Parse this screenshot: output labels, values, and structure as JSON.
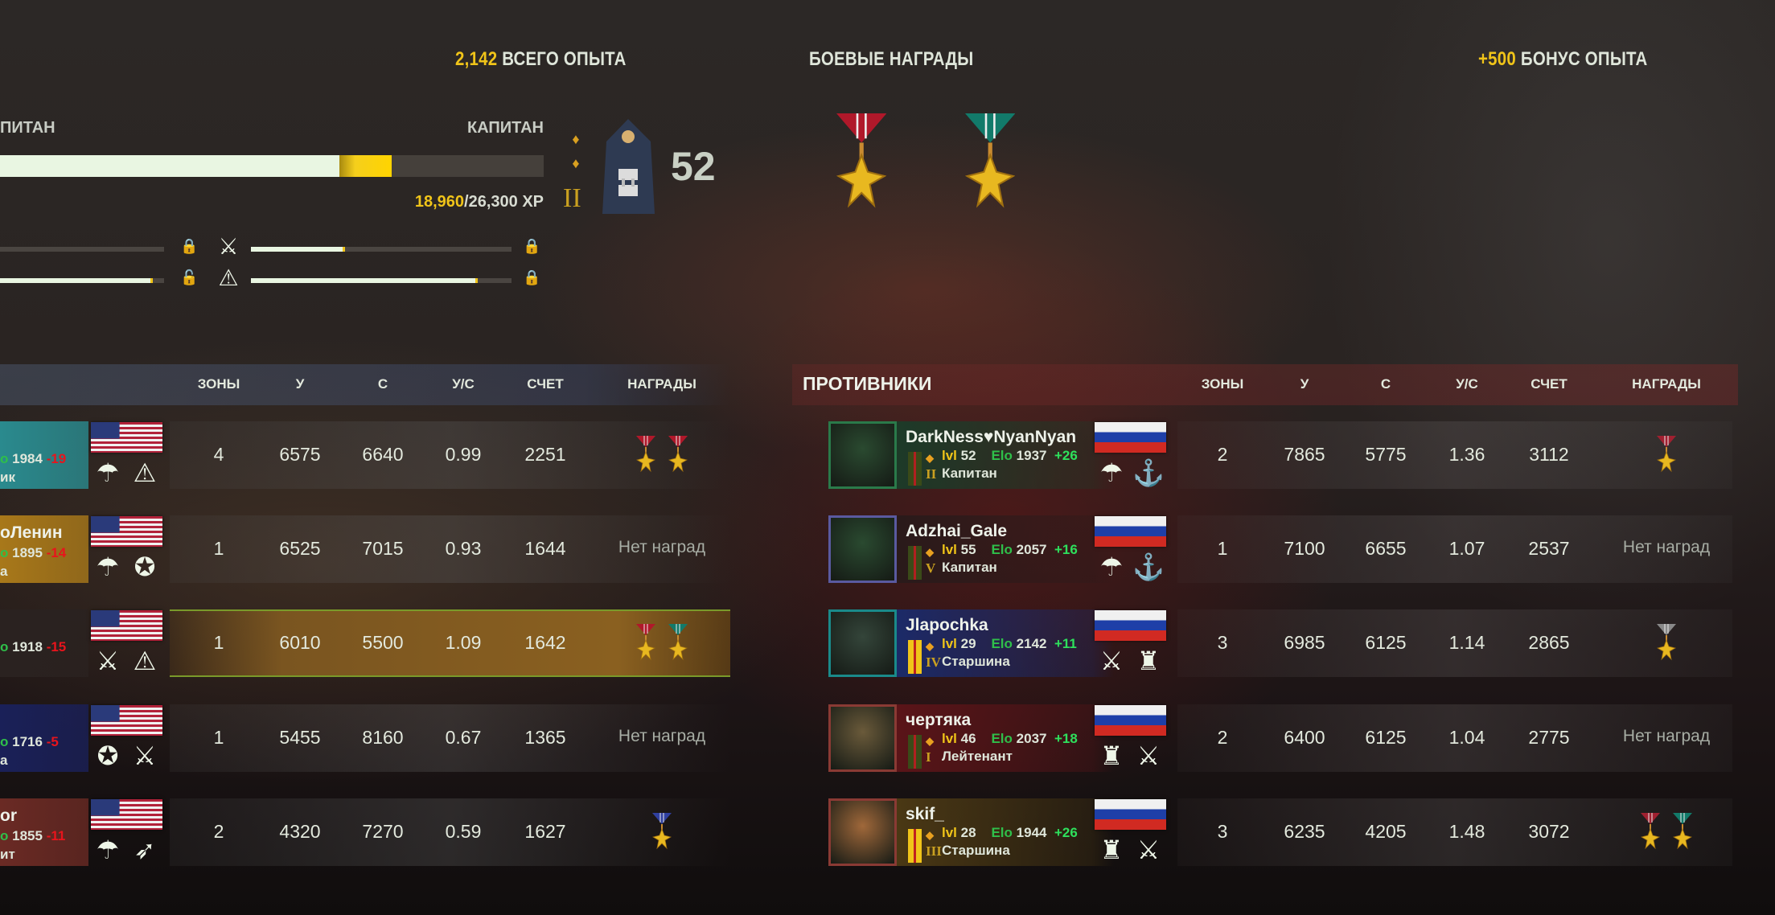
{
  "summary": {
    "total_xp_value": "2,142",
    "total_xp_label": "ВСЕГО ОПЫТА",
    "awards_title": "БОЕВЫЕ НАГРАДЫ",
    "bonus_value": "+500",
    "bonus_label": "БОНУС ОПЫТА"
  },
  "progress": {
    "current_rank": "ПИТАН",
    "next_rank": "КАПИТАН",
    "xp_current": "18,960",
    "xp_total": "/26,300 XP",
    "fill_fraction": 0.72,
    "gain_start_fraction": 0.624,
    "level": "52",
    "rank_numeral": "II"
  },
  "class_progress": [
    {
      "left_fraction": 0.0,
      "left_lock": "locked",
      "icon": "cavalry-icon",
      "right_fraction": 0.36,
      "right_lock": "locked"
    },
    {
      "left_fraction": 0.93,
      "left_lock": "unlocked",
      "icon": "engineer-icon",
      "right_fraction": 0.87,
      "right_lock": "locked"
    }
  ],
  "battle_awards": [
    {
      "ribbon": "#b0182a"
    },
    {
      "ribbon": "#127a6a"
    }
  ],
  "columns": [
    "ЗОНЫ",
    "У",
    "С",
    "У/С",
    "СЧЕТ",
    "НАГРАДЫ"
  ],
  "enemies_title": "ПРОТИВНИКИ",
  "no_awards": "Нет наград",
  "colors": {
    "accent": "#f0c419",
    "elo_green": "#2fbf4a",
    "gain": "#2ee05c",
    "loss": "#e8141c"
  },
  "allies": [
    {
      "name": "",
      "elo_prefix": "o",
      "elo": "1984",
      "delta": "-19",
      "rank": "ик",
      "bg": "#2a8a8e",
      "badges": [
        "parachute-icon",
        "engineer-icon"
      ],
      "zones": "4",
      "k": "6575",
      "d": "6640",
      "kd": "0.99",
      "score": "2251",
      "awards": [
        "#b0182a",
        "#b0182a"
      ]
    },
    {
      "name": "оЛенин",
      "elo_prefix": "o",
      "elo": "1895",
      "delta": "-14",
      "rank": "а",
      "bg": "#a8781a",
      "badges": [
        "parachute-icon",
        "marines-icon"
      ],
      "zones": "1",
      "k": "6525",
      "d": "7015",
      "kd": "0.93",
      "score": "1644",
      "awards": []
    },
    {
      "name": "",
      "elo_prefix": "o",
      "elo": "1918",
      "delta": "-15",
      "rank": "",
      "bg": "#2a2220",
      "badges": [
        "cavalry-icon",
        "engineer-icon"
      ],
      "zones": "1",
      "k": "6010",
      "d": "5500",
      "kd": "1.09",
      "score": "1642",
      "awards": [
        "#b0182a",
        "#127a6a"
      ],
      "self": true
    },
    {
      "name": "",
      "elo_prefix": "o",
      "elo": "1716",
      "delta": "-5",
      "rank": "а",
      "bg": "#1a2058",
      "badges": [
        "marines-icon",
        "cavalry-icon"
      ],
      "zones": "1",
      "k": "5455",
      "d": "8160",
      "kd": "0.67",
      "score": "1365",
      "awards": []
    },
    {
      "name": "or",
      "elo_prefix": "o",
      "elo": "1855",
      "delta": "-11",
      "rank": "ит",
      "bg": "#6a2a24",
      "badges": [
        "parachute-icon",
        "special-forces-icon"
      ],
      "zones": "2",
      "k": "4320",
      "d": "7270",
      "kd": "0.59",
      "score": "1627",
      "awards": [
        "#3040a0"
      ]
    }
  ],
  "enemies": [
    {
      "name": "DarkNess♥NyanNyan",
      "lvl_label": "lvl",
      "lvl": "52",
      "elo_label": "Elo",
      "elo": "1937",
      "delta": "+26",
      "numeral": "II",
      "rank": "Капитан",
      "strip": "officer",
      "ava": "#2a4a30",
      "frame": "#2a7a4a",
      "bg": "#1d3a28",
      "badges": [
        "parachute-icon",
        "anchor-icon"
      ],
      "zones": "2",
      "k": "7865",
      "d": "5775",
      "kd": "1.36",
      "score": "3112",
      "awards": [
        "#a02030"
      ]
    },
    {
      "name": "Adzhai_Gale",
      "lvl_label": "lvl",
      "lvl": "55",
      "elo_label": "Elo",
      "elo": "2057",
      "delta": "+16",
      "numeral": "V",
      "rank": "Капитан",
      "strip": "officer",
      "ava": "#2a4a30",
      "frame": "#5a5aa0",
      "bg": "#2a1a1a",
      "badges": [
        "parachute-icon",
        "anchor-icon"
      ],
      "zones": "1",
      "k": "7100",
      "d": "6655",
      "kd": "1.07",
      "score": "2537",
      "awards": []
    },
    {
      "name": "Jlapochka",
      "lvl_label": "lvl",
      "lvl": "29",
      "elo_label": "Elo",
      "elo": "2142",
      "delta": "+11",
      "numeral": "IV",
      "rank": "Старшина",
      "strip": "nco",
      "ava": "#34453a",
      "frame": "#1a8a8a",
      "bg": "#1c2a68",
      "badges": [
        "rifles-icon",
        "tank-icon"
      ],
      "zones": "3",
      "k": "6985",
      "d": "6125",
      "kd": "1.14",
      "score": "2865",
      "awards": [
        "#888888"
      ]
    },
    {
      "name": "чертяка",
      "lvl_label": "lvl",
      "lvl": "46",
      "elo_label": "Elo",
      "elo": "2037",
      "delta": "+18",
      "numeral": "I",
      "rank": "Лейтенант",
      "strip": "officer",
      "ava": "#6a5a3a",
      "frame": "#8a3a34",
      "bg": "#5a1418",
      "badges": [
        "tank-icon",
        "rifles-icon"
      ],
      "zones": "2",
      "k": "6400",
      "d": "6125",
      "kd": "1.04",
      "score": "2775",
      "awards": []
    },
    {
      "name": "skif_",
      "lvl_label": "lvl",
      "lvl": "28",
      "elo_label": "Elo",
      "elo": "1944",
      "delta": "+26",
      "numeral": "III",
      "rank": "Старшина",
      "strip": "nco",
      "ava": "#a0683a",
      "frame": "#8a3a34",
      "bg": "#4a3814",
      "badges": [
        "tank-icon",
        "rifles-icon"
      ],
      "zones": "3",
      "k": "6235",
      "d": "4205",
      "kd": "1.48",
      "score": "3072",
      "awards": [
        "#a02030",
        "#127a6a"
      ]
    }
  ]
}
